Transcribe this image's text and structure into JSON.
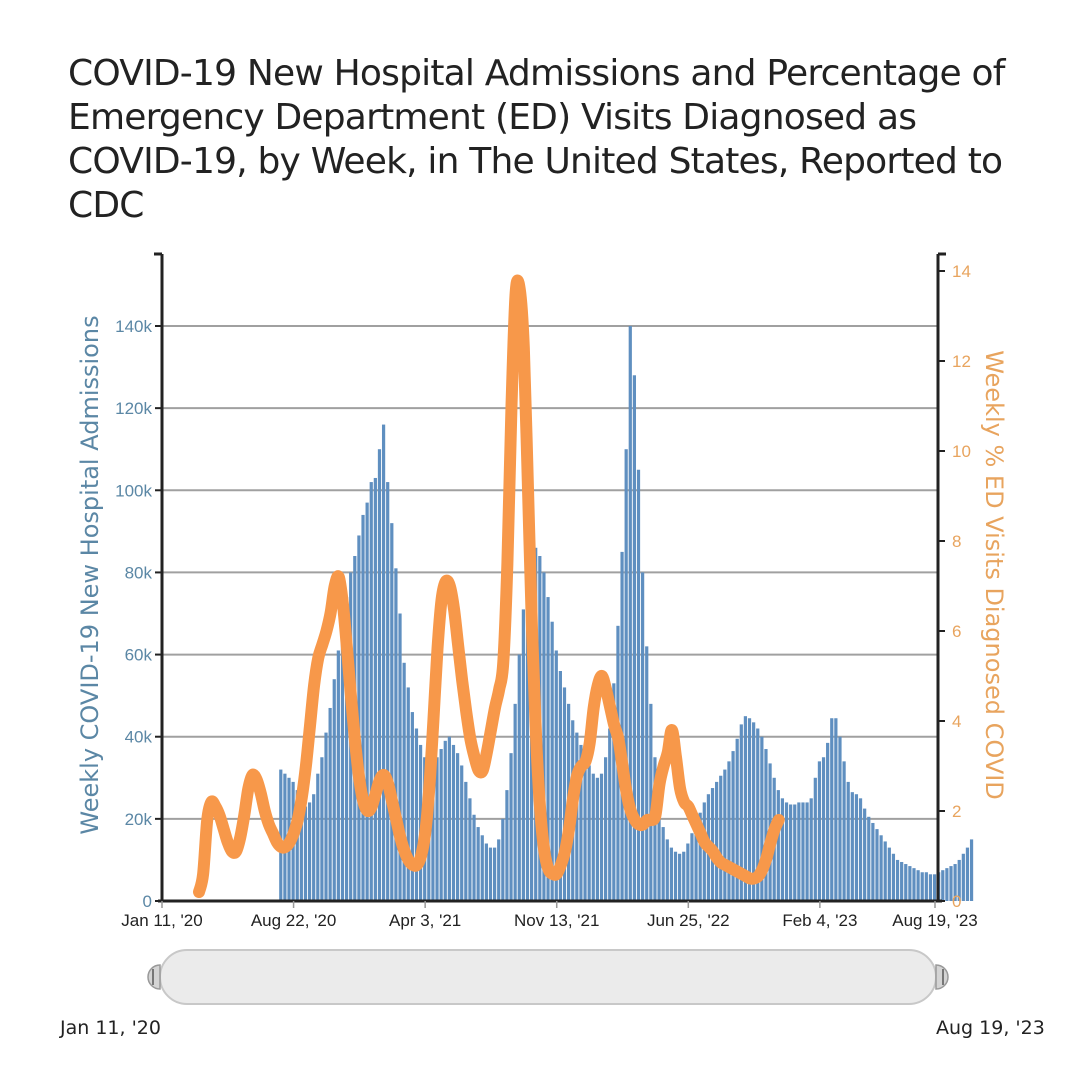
{
  "chart_data": {
    "type": "bar+line",
    "title": "COVID-19 New Hospital Admissions and Percentage of Emergency Department (ED) Visits Diagnosed as COVID-19, by Week, in The United States, Reported to CDC",
    "xlabel": "",
    "ylabel_left": "Weekly COVID-19 New Hospital Admissions",
    "ylabel_right": "Weekly % ED Visits Diagnosed COVID",
    "x_range": [
      "2020-01-11",
      "2023-08-19"
    ],
    "x_tick_labels": [
      "Jan 11, '20",
      "Aug 22, '20",
      "Apr 3, '21",
      "Nov 13, '21",
      "Jun 25, '22",
      "Feb 4, '23",
      "Aug 19, '23"
    ],
    "x_tick_weeks": [
      0,
      32,
      64,
      96,
      128,
      160,
      188
    ],
    "ylim_left": [
      0,
      160000
    ],
    "y_ticks_left": [
      0,
      20000,
      40000,
      60000,
      80000,
      100000,
      120000,
      140000
    ],
    "y_tick_labels_left": [
      "0",
      "20k",
      "40k",
      "60k",
      "80k",
      "100k",
      "120k",
      "140k"
    ],
    "ylim_right": [
      0,
      14.5
    ],
    "y_ticks_right": [
      0,
      2,
      4,
      6,
      8,
      10,
      12,
      14
    ],
    "y_tick_labels_right": [
      "0",
      "2",
      "4",
      "6",
      "8",
      "10",
      "12",
      "14"
    ],
    "grid": true,
    "colors": {
      "bars": "#5f8fc0",
      "line": "#f7984a",
      "left_axis_text": "#5b87a5",
      "right_axis_text": "#e8a45e",
      "grid": "#a0a0a0"
    },
    "series": [
      {
        "name": "Weekly COVID-19 New Hospital Admissions",
        "type": "bar",
        "axis": "left",
        "start_week": 29,
        "values": [
          32000,
          31000,
          30000,
          29000,
          27000,
          25000,
          23000,
          24000,
          26000,
          31000,
          35000,
          41000,
          47000,
          54000,
          61000,
          68000,
          74000,
          80000,
          84000,
          89000,
          94000,
          97000,
          102000,
          103000,
          110000,
          116000,
          102000,
          92000,
          81000,
          70000,
          58000,
          52000,
          46000,
          42000,
          38000,
          35000,
          33000,
          33000,
          35000,
          37000,
          39000,
          40000,
          38000,
          36000,
          33000,
          29000,
          25000,
          21000,
          18000,
          16000,
          14000,
          13000,
          13000,
          15000,
          20000,
          27000,
          36000,
          48000,
          60000,
          71000,
          79000,
          85000,
          86000,
          84000,
          80000,
          74000,
          68000,
          61000,
          56000,
          52000,
          48000,
          44000,
          41000,
          38000,
          35000,
          33000,
          31000,
          30000,
          31000,
          35000,
          42000,
          53000,
          67000,
          85000,
          110000,
          140000,
          128000,
          105000,
          80000,
          62000,
          48000,
          35000,
          25000,
          18000,
          15000,
          13000,
          12000,
          11500,
          12000,
          14000,
          16500,
          19000,
          21500,
          24000,
          26000,
          27500,
          29000,
          30500,
          32000,
          34000,
          36500,
          39500,
          43000,
          45000,
          44500,
          43500,
          42000,
          40000,
          37000,
          33500,
          30000,
          27000,
          25000,
          24000,
          23500,
          23500,
          24000,
          24000,
          24000,
          25000,
          30000,
          34000,
          35000,
          38500,
          44500,
          44500,
          40000,
          34000,
          29000,
          26500,
          26000,
          25000,
          22500,
          20500,
          19000,
          17500,
          16000,
          14500,
          13000,
          11500,
          10000,
          9500,
          9000,
          8500,
          8000,
          7500,
          7000,
          7000,
          6500,
          6500,
          7000,
          7500,
          8000,
          8500,
          9000,
          10000,
          11500,
          13000,
          15000
        ]
      },
      {
        "name": "Weekly % ED Visits Diagnosed COVID",
        "type": "line",
        "axis": "right",
        "points": [
          [
            9,
            0.2
          ],
          [
            10,
            0.6
          ],
          [
            11,
            1.8
          ],
          [
            12,
            2.2
          ],
          [
            13,
            2.1
          ],
          [
            14,
            1.9
          ],
          [
            15,
            1.6
          ],
          [
            16,
            1.3
          ],
          [
            17,
            1.1
          ],
          [
            18,
            1.1
          ],
          [
            19,
            1.4
          ],
          [
            20,
            1.9
          ],
          [
            21,
            2.5
          ],
          [
            22,
            2.8
          ],
          [
            23,
            2.7
          ],
          [
            24,
            2.4
          ],
          [
            25,
            2.0
          ],
          [
            26,
            1.7
          ],
          [
            27,
            1.5
          ],
          [
            28,
            1.3
          ],
          [
            29,
            1.2
          ],
          [
            30,
            1.2
          ],
          [
            31,
            1.3
          ],
          [
            32,
            1.5
          ],
          [
            33,
            1.8
          ],
          [
            34,
            2.3
          ],
          [
            35,
            3.0
          ],
          [
            36,
            3.9
          ],
          [
            37,
            4.8
          ],
          [
            38,
            5.4
          ],
          [
            39,
            5.7
          ],
          [
            40,
            6.0
          ],
          [
            41,
            6.4
          ],
          [
            42,
            7.0
          ],
          [
            43,
            7.2
          ],
          [
            44,
            6.6
          ],
          [
            45,
            5.6
          ],
          [
            46,
            4.5
          ],
          [
            47,
            3.5
          ],
          [
            48,
            2.7
          ],
          [
            49,
            2.2
          ],
          [
            50,
            2.0
          ],
          [
            51,
            2.1
          ],
          [
            52,
            2.4
          ],
          [
            53,
            2.7
          ],
          [
            54,
            2.8
          ],
          [
            55,
            2.6
          ],
          [
            56,
            2.2
          ],
          [
            57,
            1.8
          ],
          [
            58,
            1.4
          ],
          [
            59,
            1.1
          ],
          [
            60,
            0.9
          ],
          [
            61,
            0.8
          ],
          [
            62,
            0.8
          ],
          [
            63,
            1.0
          ],
          [
            64,
            1.5
          ],
          [
            65,
            2.5
          ],
          [
            66,
            4.0
          ],
          [
            67,
            5.6
          ],
          [
            68,
            6.7
          ],
          [
            69,
            7.1
          ],
          [
            70,
            7.0
          ],
          [
            71,
            6.5
          ],
          [
            72,
            5.7
          ],
          [
            73,
            4.9
          ],
          [
            74,
            4.2
          ],
          [
            75,
            3.6
          ],
          [
            76,
            3.2
          ],
          [
            77,
            2.9
          ],
          [
            78,
            2.9
          ],
          [
            79,
            3.3
          ],
          [
            80,
            3.8
          ],
          [
            81,
            4.3
          ],
          [
            82,
            4.7
          ],
          [
            83,
            5.3
          ],
          [
            84,
            7.5
          ],
          [
            85,
            11.0
          ],
          [
            86,
            13.5
          ],
          [
            87,
            13.6
          ],
          [
            88,
            12.3
          ],
          [
            89,
            9.2
          ],
          [
            90,
            6.0
          ],
          [
            91,
            3.6
          ],
          [
            92,
            2.0
          ],
          [
            93,
            1.1
          ],
          [
            94,
            0.7
          ],
          [
            95,
            0.6
          ],
          [
            96,
            0.6
          ],
          [
            97,
            0.8
          ],
          [
            98,
            1.1
          ],
          [
            99,
            1.6
          ],
          [
            100,
            2.3
          ],
          [
            101,
            2.8
          ],
          [
            102,
            3.0
          ],
          [
            103,
            3.1
          ],
          [
            104,
            3.5
          ],
          [
            105,
            4.3
          ],
          [
            106,
            4.8
          ],
          [
            107,
            5.0
          ],
          [
            108,
            4.7
          ],
          [
            109,
            4.3
          ],
          [
            110,
            3.9
          ],
          [
            111,
            3.6
          ],
          [
            112,
            3.0
          ],
          [
            113,
            2.4
          ],
          [
            114,
            2.0
          ],
          [
            115,
            1.8
          ],
          [
            116,
            1.7
          ],
          [
            117,
            1.7
          ],
          [
            118,
            1.8
          ],
          [
            119,
            1.8
          ],
          [
            120,
            1.9
          ],
          [
            121,
            2.6
          ],
          [
            122,
            3.0
          ],
          [
            123,
            3.3
          ],
          [
            124,
            3.8
          ],
          [
            125,
            3.2
          ],
          [
            126,
            2.5
          ],
          [
            127,
            2.2
          ],
          [
            128,
            2.1
          ],
          [
            129,
            1.9
          ],
          [
            130,
            1.7
          ],
          [
            131,
            1.5
          ],
          [
            132,
            1.3
          ],
          [
            133,
            1.2
          ],
          [
            134,
            1.1
          ],
          [
            135,
            0.95
          ],
          [
            136,
            0.85
          ],
          [
            137,
            0.8
          ],
          [
            138,
            0.75
          ],
          [
            139,
            0.7
          ],
          [
            140,
            0.65
          ],
          [
            141,
            0.6
          ],
          [
            142,
            0.55
          ],
          [
            143,
            0.5
          ],
          [
            144,
            0.5
          ],
          [
            145,
            0.55
          ],
          [
            146,
            0.7
          ],
          [
            147,
            0.95
          ],
          [
            148,
            1.3
          ],
          [
            149,
            1.6
          ],
          [
            150,
            1.8
          ]
        ]
      }
    ]
  },
  "range_selector": {
    "start_label": "Jan 11, '20",
    "end_label": "Aug 19, '23"
  }
}
